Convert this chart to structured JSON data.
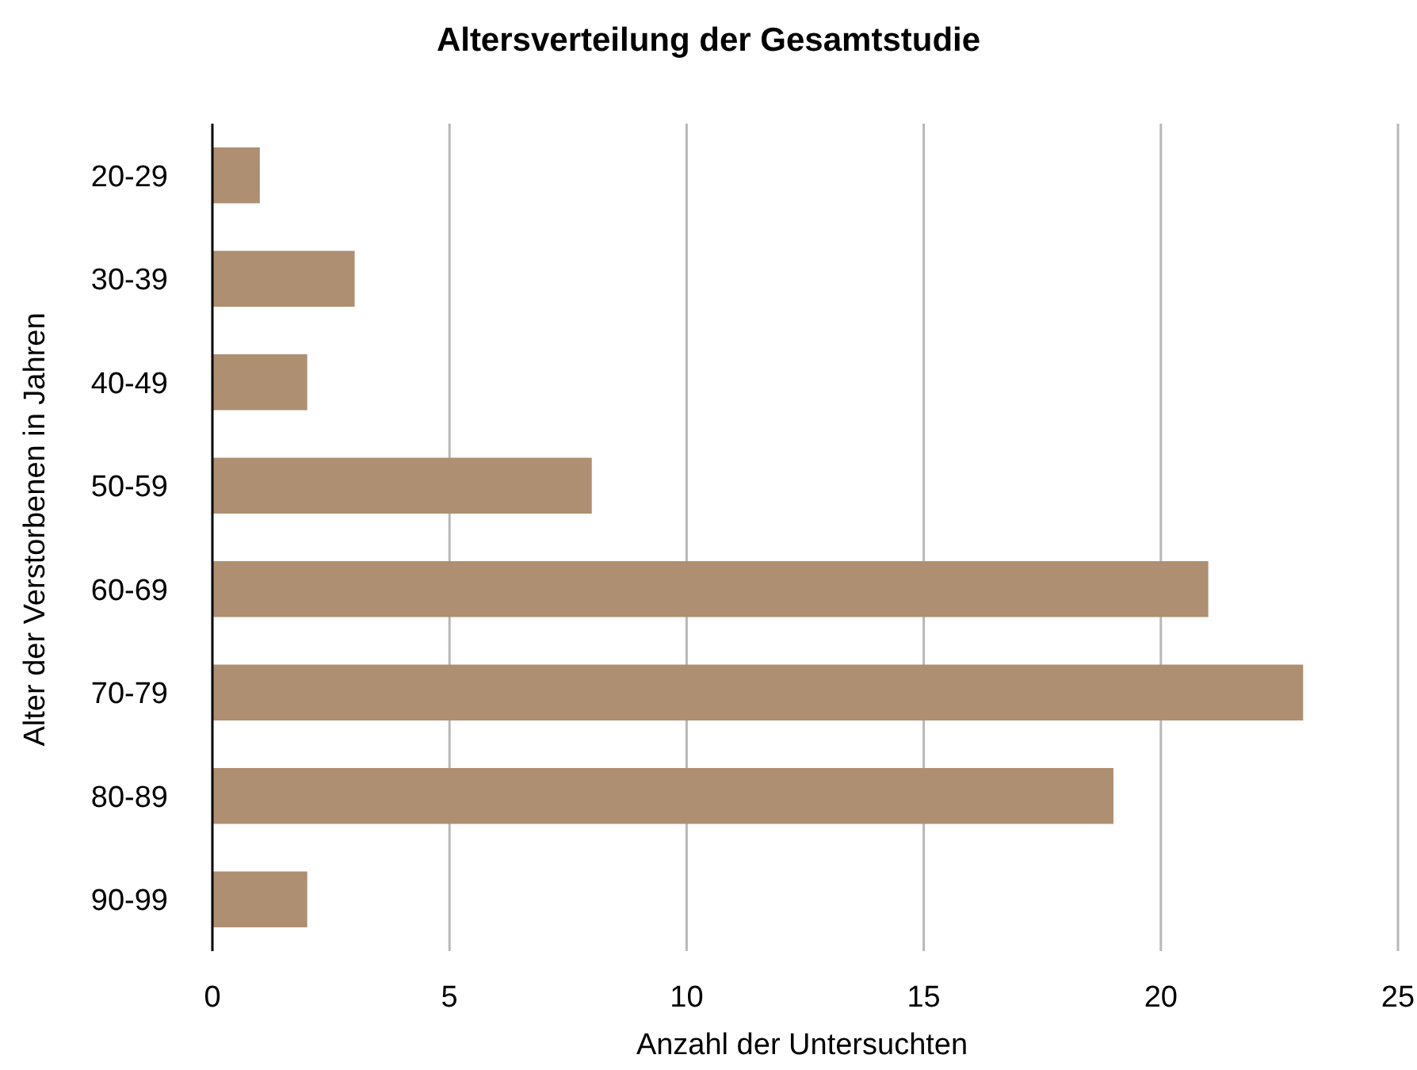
{
  "chart_data": {
    "type": "bar",
    "orientation": "horizontal",
    "title": "Altersverteilung der Gesamtstudie",
    "xlabel": "Anzahl der Untersuchten",
    "ylabel": "Alter der Verstorbenen in Jahren",
    "categories": [
      "20-29",
      "30-39",
      "40-49",
      "50-59",
      "60-69",
      "70-79",
      "80-89",
      "90-99"
    ],
    "values": [
      1,
      3,
      2,
      8,
      21,
      23,
      19,
      2
    ],
    "color": "#ae8f71",
    "xlim": [
      0,
      25
    ],
    "xticks": [
      0,
      5,
      10,
      15,
      20,
      25
    ],
    "grid": "x"
  }
}
